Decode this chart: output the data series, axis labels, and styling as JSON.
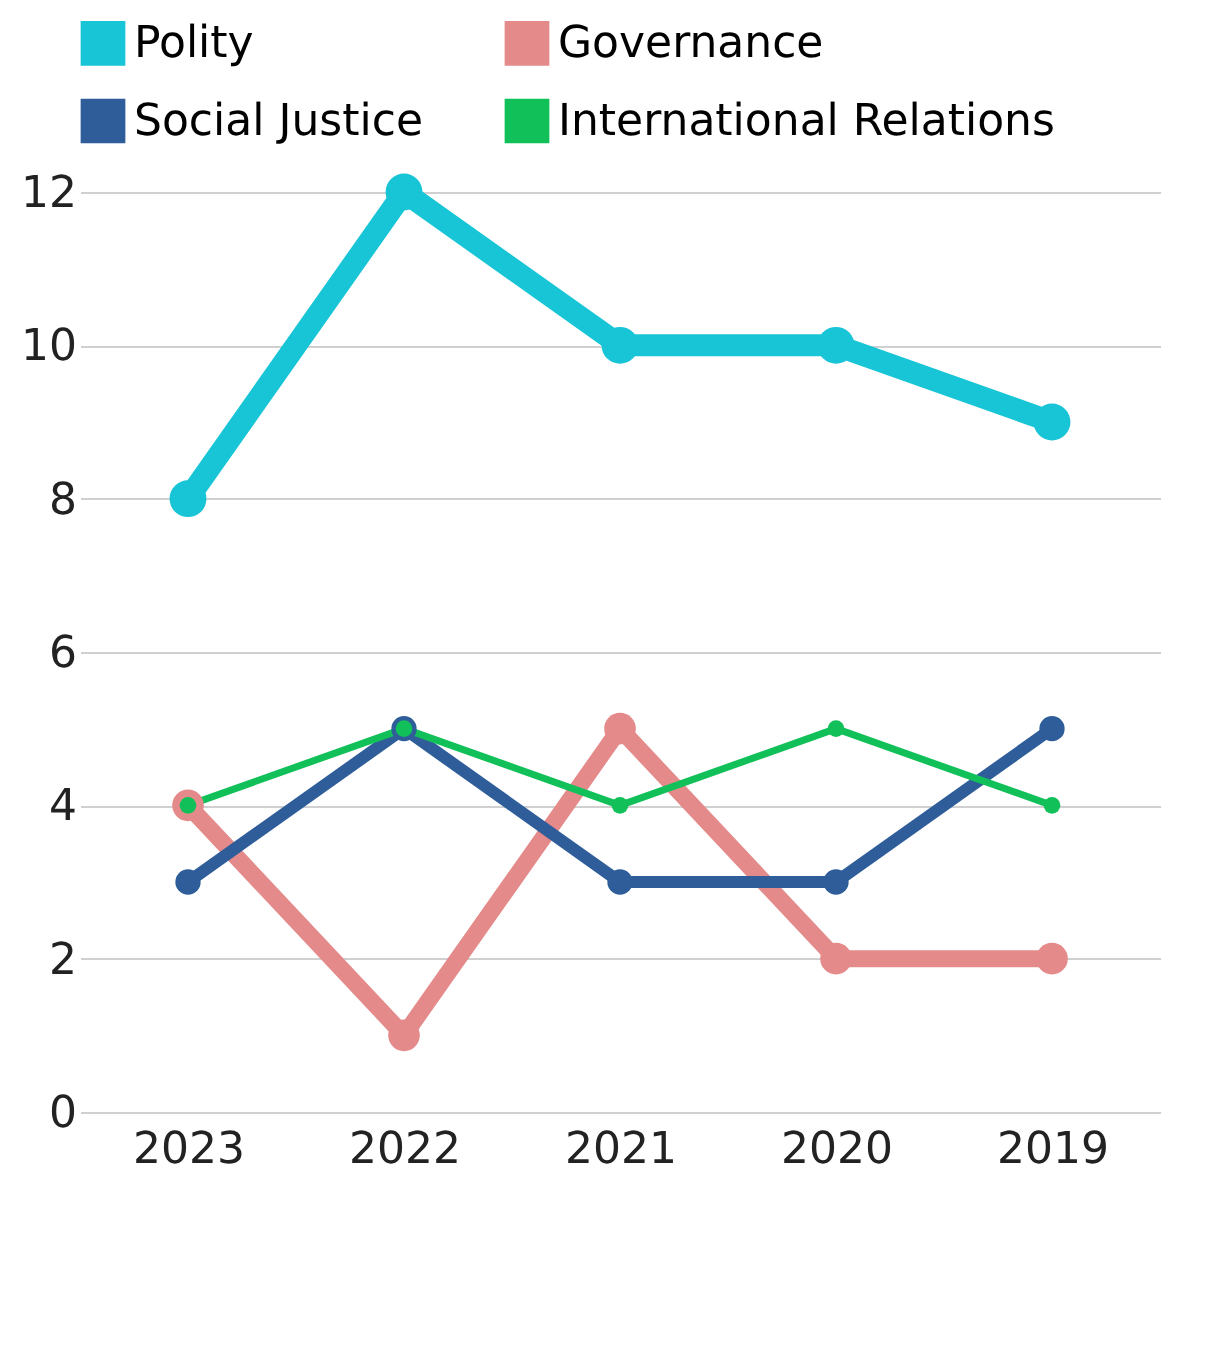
{
  "chart_data": {
    "type": "line",
    "categories": [
      "2023",
      "2022",
      "2021",
      "2020",
      "2019"
    ],
    "series": [
      {
        "name": "Polity",
        "color": "#17c5d6",
        "values": [
          8,
          12,
          10,
          10,
          9
        ]
      },
      {
        "name": "Governance",
        "color": "#e48a8a",
        "values": [
          4,
          1,
          5,
          2,
          2
        ]
      },
      {
        "name": "Social Justice",
        "color": "#2e5d9a",
        "values": [
          3,
          5,
          3,
          3,
          5
        ]
      },
      {
        "name": "International Relations",
        "color": "#12c05a",
        "values": [
          4,
          5,
          4,
          5,
          4
        ]
      }
    ],
    "ylim": [
      0,
      12
    ],
    "yticks": [
      0,
      2,
      4,
      6,
      8,
      10,
      12
    ],
    "grid": "y",
    "legend": "top",
    "marker": "circle",
    "line_style": "solid"
  }
}
